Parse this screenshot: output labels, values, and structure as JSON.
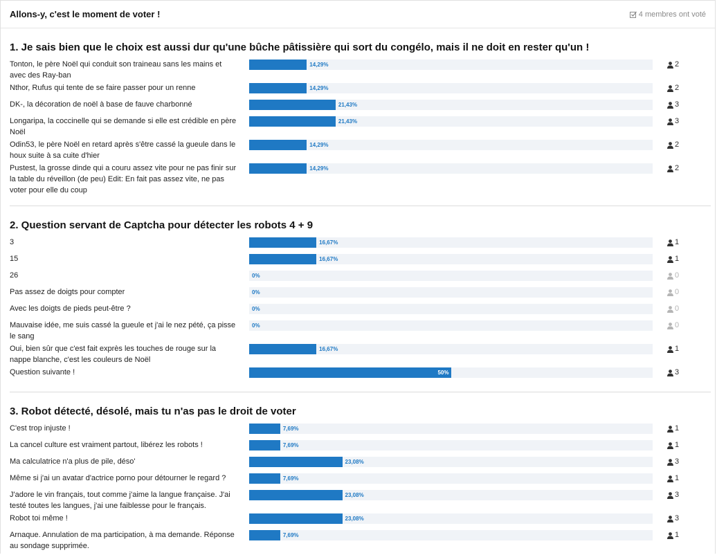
{
  "header": {
    "title": "Allons-y, c'est le moment de voter !",
    "voters": "4 membres ont voté"
  },
  "questions": [
    {
      "title": "1. Je sais bien que le choix est aussi dur qu'une bûche pâtissière qui sort du congélo, mais il ne doit en rester qu'un !",
      "options": [
        {
          "label": "Tonton, le père Noël qui conduit son traineau sans les mains et avec des Ray-ban",
          "percent": {
            "value": 14.29,
            "label": "14,29%"
          },
          "votes": 2
        },
        {
          "label": "Nthor, Rufus qui tente de se faire passer pour un renne",
          "percent": {
            "value": 14.29,
            "label": "14,29%"
          },
          "votes": 2
        },
        {
          "label": "DK-, la décoration de noël à base de fauve charbonné",
          "percent": {
            "value": 21.43,
            "label": "21,43%"
          },
          "votes": 3
        },
        {
          "label": "Longaripa, la coccinelle qui se demande si elle est crédible en père Noël",
          "percent": {
            "value": 21.43,
            "label": "21,43%"
          },
          "votes": 3
        },
        {
          "label": "Odin53, le père Noël en retard après s'être cassé la gueule dans le houx suite à sa cuite d'hier",
          "percent": {
            "value": 14.29,
            "label": "14,29%"
          },
          "votes": 2
        },
        {
          "label": "Pustest, la grosse dinde qui a couru assez vite pour ne pas finir sur la table du réveillon (de peu) Edit: En fait pas assez vite, ne pas voter pour elle du coup",
          "percent": {
            "value": 14.29,
            "label": "14,29%"
          },
          "votes": 2
        }
      ]
    },
    {
      "title": "2. Question servant de Captcha pour détecter les robots 4 + 9",
      "options": [
        {
          "label": "3",
          "percent": {
            "value": 16.67,
            "label": "16,67%"
          },
          "votes": 1
        },
        {
          "label": "15",
          "percent": {
            "value": 16.67,
            "label": "16,67%"
          },
          "votes": 1
        },
        {
          "label": "26",
          "percent": {
            "value": 0,
            "label": "0%"
          },
          "votes": 0
        },
        {
          "label": "Pas assez de doigts pour compter",
          "percent": {
            "value": 0,
            "label": "0%"
          },
          "votes": 0
        },
        {
          "label": "Avec les doigts de pieds peut-être ?",
          "percent": {
            "value": 0,
            "label": "0%"
          },
          "votes": 0
        },
        {
          "label": "Mauvaise idée, me suis cassé la gueule et j'ai le nez pété, ça pisse le sang",
          "percent": {
            "value": 0,
            "label": "0%"
          },
          "votes": 0
        },
        {
          "label": "Oui, bien sûr que c'est fait exprès les touches de rouge sur la nappe blanche, c'est les couleurs de Noël",
          "percent": {
            "value": 16.67,
            "label": "16,67%"
          },
          "votes": 1
        },
        {
          "label": "Question suivante !",
          "percent": {
            "value": 50,
            "label": "50%"
          },
          "votes": 3
        }
      ]
    },
    {
      "title": "3. Robot détecté, désolé, mais tu n'as pas le droit de voter",
      "options": [
        {
          "label": "C'est trop injuste !",
          "percent": {
            "value": 7.69,
            "label": "7,69%"
          },
          "votes": 1
        },
        {
          "label": "La cancel culture est vraiment partout, libérez les robots !",
          "percent": {
            "value": 7.69,
            "label": "7,69%"
          },
          "votes": 1
        },
        {
          "label": "Ma calculatrice n'a plus de pile, déso'",
          "percent": {
            "value": 23.08,
            "label": "23,08%"
          },
          "votes": 3
        },
        {
          "label": "Même si j'ai un avatar d'actrice porno pour détourner le regard ?",
          "percent": {
            "value": 7.69,
            "label": "7,69%"
          },
          "votes": 1
        },
        {
          "label": "J'adore le vin français, tout comme j'aime la langue française. J'ai testé toutes les langues, j'ai une faiblesse pour le français.",
          "percent": {
            "value": 23.08,
            "label": "23,08%"
          },
          "votes": 3
        },
        {
          "label": "Robot toi même !",
          "percent": {
            "value": 23.08,
            "label": "23,08%"
          },
          "votes": 3
        },
        {
          "label": "Arnaque. Annulation de ma participation, à ma demande. Réponse au sondage supprimée.",
          "percent": {
            "value": 7.69,
            "label": "7,69%"
          },
          "votes": 1
        }
      ]
    }
  ]
}
